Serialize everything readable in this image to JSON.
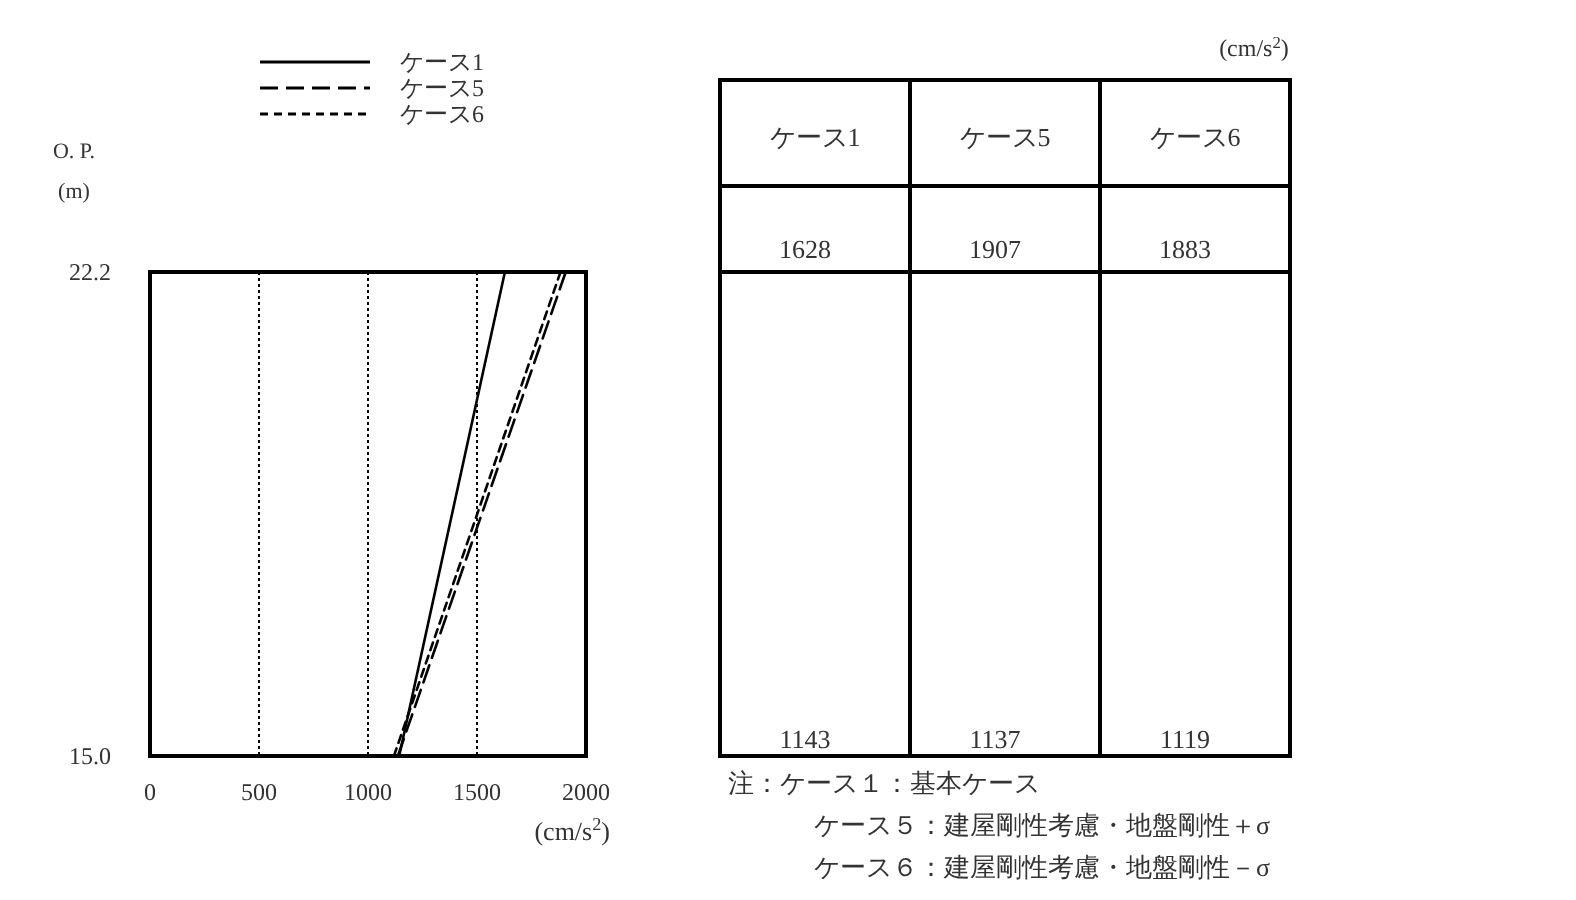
{
  "chart_data": {
    "type": "line",
    "ylabel": "O. P.\n(m)",
    "xlabel": "(cm/s$^{2}$)",
    "series": [
      {
        "name": "ケース1",
        "color": "#000000",
        "line_style": "solid",
        "x": [
          1143,
          1628
        ],
        "values": [
          15.0,
          22.2
        ]
      },
      {
        "name": "ケース5",
        "color": "#000000",
        "line_style": "dashed",
        "x": [
          1137,
          1907
        ],
        "values": [
          15.0,
          22.2
        ]
      },
      {
        "name": "ケース6",
        "color": "#000000",
        "line_style": "dotted",
        "x": [
          1119,
          1883
        ],
        "values": [
          15.0,
          22.2
        ]
      }
    ],
    "xlim": [
      0,
      2000
    ],
    "xticks": [
      0,
      500,
      1000,
      1500,
      2000
    ],
    "ylim": [
      15.0,
      22.2
    ],
    "yticks": [
      {
        "value": 15.0,
        "label": "15.0"
      },
      {
        "value": 22.2,
        "label": "22.2"
      }
    ],
    "grid": "x",
    "legend": "top left",
    "annotations": [
      "(cm/s$^{2}$)",
      "1628",
      "1143",
      "1907",
      "1137",
      "1883",
      "1119",
      "注：ケース１：基本ケース",
      "ケース５：建屋剛性考慮・地盤剛性＋σ",
      "ケース６：建屋剛性考慮・地盤剛性－σ"
    ]
  }
}
